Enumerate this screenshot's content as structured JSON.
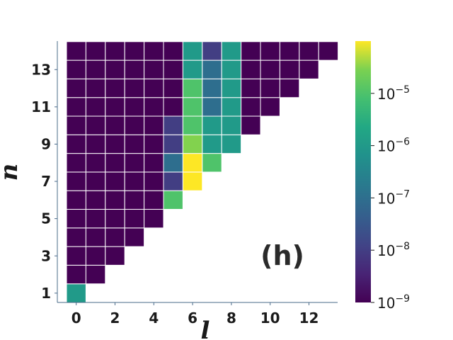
{
  "chart_data": {
    "type": "heatmap",
    "xlabel": "l",
    "ylabel": "n",
    "annotation": "(h)",
    "x_tick_labels": [
      "0",
      "2",
      "4",
      "6",
      "8",
      "10",
      "12"
    ],
    "y_tick_labels": [
      "1",
      "3",
      "5",
      "7",
      "9",
      "11",
      "13"
    ],
    "xlim": [
      0,
      13
    ],
    "ylim": [
      1,
      14
    ],
    "color_scale": "log",
    "colormap": "viridis",
    "colorbar": {
      "vmin": 1e-09,
      "vmax": 0.0001,
      "ticks": [
        {
          "mantissa": "10",
          "exponent": "−9",
          "value": 1e-09
        },
        {
          "mantissa": "10",
          "exponent": "−8",
          "value": 1e-08
        },
        {
          "mantissa": "10",
          "exponent": "−7",
          "value": 1e-07
        },
        {
          "mantissa": "10",
          "exponent": "−6",
          "value": 1e-06
        },
        {
          "mantissa": "10",
          "exponent": "−5",
          "value": 1e-05
        }
      ]
    },
    "rows": [
      {
        "n": 1,
        "values": [
          1e-06
        ]
      },
      {
        "n": 2,
        "values": [
          1e-09,
          1e-09
        ]
      },
      {
        "n": 3,
        "values": [
          1e-09,
          1e-09,
          1e-09
        ]
      },
      {
        "n": 4,
        "values": [
          1e-09,
          1e-09,
          1e-09,
          1e-09
        ]
      },
      {
        "n": 5,
        "values": [
          1e-09,
          1e-09,
          1e-09,
          1e-09,
          1e-09
        ]
      },
      {
        "n": 6,
        "values": [
          1e-09,
          1e-09,
          1e-09,
          1e-09,
          1e-09,
          1e-05
        ]
      },
      {
        "n": 7,
        "values": [
          1e-09,
          1e-09,
          1e-09,
          1e-09,
          1e-09,
          1e-08,
          0.0001
        ]
      },
      {
        "n": 8,
        "values": [
          1e-09,
          1e-09,
          1e-09,
          1e-09,
          1e-09,
          1e-07,
          0.0001,
          1e-05
        ]
      },
      {
        "n": 9,
        "values": [
          1e-09,
          1e-09,
          1e-09,
          1e-09,
          1e-09,
          1e-08,
          3e-05,
          1e-06,
          1e-06
        ]
      },
      {
        "n": 10,
        "values": [
          1e-09,
          1e-09,
          1e-09,
          1e-09,
          1e-09,
          1e-08,
          1e-05,
          1e-06,
          1e-06,
          1e-09
        ]
      },
      {
        "n": 11,
        "values": [
          1e-09,
          1e-09,
          1e-09,
          1e-09,
          1e-09,
          1e-09,
          1e-05,
          1e-07,
          1e-06,
          1e-09,
          1e-09
        ]
      },
      {
        "n": 12,
        "values": [
          1e-09,
          1e-09,
          1e-09,
          1e-09,
          1e-09,
          1e-09,
          1e-05,
          1e-07,
          1e-06,
          1e-09,
          1e-09,
          1e-09
        ]
      },
      {
        "n": 13,
        "values": [
          1e-09,
          1e-09,
          1e-09,
          1e-09,
          1e-09,
          1e-09,
          1e-06,
          1e-07,
          1e-06,
          1e-09,
          1e-09,
          1e-09,
          1e-09
        ]
      },
      {
        "n": 14,
        "values": [
          1e-09,
          1e-09,
          1e-09,
          1e-09,
          1e-09,
          1e-09,
          1e-06,
          1e-08,
          1e-06,
          1e-09,
          1e-09,
          1e-09,
          1e-09,
          1e-09
        ]
      }
    ]
  }
}
